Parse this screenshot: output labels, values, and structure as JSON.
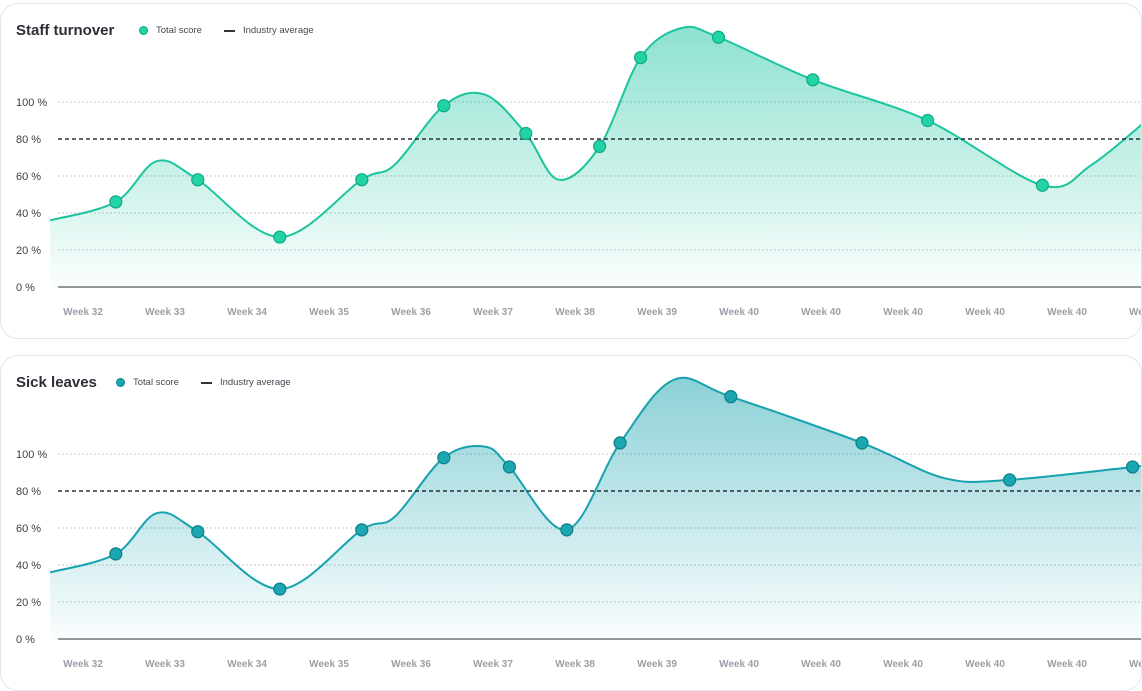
{
  "chart_data": [
    {
      "type": "area",
      "title": "Staff turnover",
      "legend": [
        "Total score",
        "Industry average"
      ],
      "color": "#1cc4a0",
      "marker_color": "#22d3a6",
      "marker_stroke": "#10a985",
      "yticks": [
        "0 %",
        "20 %",
        "40 %",
        "60 %",
        "80 %",
        "100 %"
      ],
      "ylim": [
        0,
        140
      ],
      "x_labels": [
        "Week 32",
        "Week 33",
        "Week 34",
        "Week 35",
        "Week 36",
        "Week 37",
        "Week 38",
        "Week 39",
        "Week 40",
        "Week 40",
        "Week 40",
        "Week 40",
        "Week 40",
        "Week"
      ],
      "industry_average": 80,
      "grid": true,
      "points": [
        {
          "x": -0.4,
          "y": 36,
          "marker": false
        },
        {
          "x": 0.4,
          "y": 46,
          "marker": true
        },
        {
          "x": 0.9,
          "y": 68,
          "marker": false
        },
        {
          "x": 1.4,
          "y": 58,
          "marker": true
        },
        {
          "x": 2.4,
          "y": 27,
          "marker": true
        },
        {
          "x": 3.4,
          "y": 58,
          "marker": true
        },
        {
          "x": 3.8,
          "y": 66,
          "marker": false
        },
        {
          "x": 4.4,
          "y": 98,
          "marker": true
        },
        {
          "x": 4.9,
          "y": 104,
          "marker": false
        },
        {
          "x": 5.4,
          "y": 83,
          "marker": true
        },
        {
          "x": 5.8,
          "y": 58,
          "marker": false
        },
        {
          "x": 6.3,
          "y": 76,
          "marker": true
        },
        {
          "x": 6.8,
          "y": 124,
          "marker": true
        },
        {
          "x": 7.3,
          "y": 140,
          "marker": false
        },
        {
          "x": 7.75,
          "y": 135,
          "marker": true
        },
        {
          "x": 8.9,
          "y": 112,
          "marker": true
        },
        {
          "x": 10.3,
          "y": 90,
          "marker": true
        },
        {
          "x": 11.7,
          "y": 55,
          "marker": true
        },
        {
          "x": 12.3,
          "y": 66,
          "marker": false
        },
        {
          "x": 13.1,
          "y": 95,
          "marker": false
        }
      ]
    },
    {
      "type": "area",
      "title": "Sick leaves",
      "legend": [
        "Total score",
        "Industry average"
      ],
      "color": "#16a2ae",
      "marker_color": "#1aa7b2",
      "marker_stroke": "#0d7f8a",
      "yticks": [
        "0 %",
        "20 %",
        "40 %",
        "60 %",
        "80 %",
        "100 %"
      ],
      "ylim": [
        0,
        140
      ],
      "x_labels": [
        "Week 32",
        "Week 33",
        "Week 34",
        "Week 35",
        "Week 36",
        "Week 37",
        "Week 38",
        "Week 39",
        "Week 40",
        "Week 40",
        "Week 40",
        "Week 40",
        "Week 40",
        "Week"
      ],
      "industry_average": 80,
      "grid": true,
      "points": [
        {
          "x": -0.4,
          "y": 36,
          "marker": false
        },
        {
          "x": 0.4,
          "y": 46,
          "marker": true
        },
        {
          "x": 0.9,
          "y": 68,
          "marker": false
        },
        {
          "x": 1.4,
          "y": 58,
          "marker": true
        },
        {
          "x": 2.4,
          "y": 27,
          "marker": true
        },
        {
          "x": 3.4,
          "y": 59,
          "marker": true
        },
        {
          "x": 3.8,
          "y": 66,
          "marker": false
        },
        {
          "x": 4.4,
          "y": 98,
          "marker": true
        },
        {
          "x": 4.9,
          "y": 104,
          "marker": false
        },
        {
          "x": 5.2,
          "y": 93,
          "marker": true
        },
        {
          "x": 5.9,
          "y": 59,
          "marker": true
        },
        {
          "x": 6.55,
          "y": 106,
          "marker": true
        },
        {
          "x": 7.2,
          "y": 140,
          "marker": false
        },
        {
          "x": 7.9,
          "y": 131,
          "marker": true
        },
        {
          "x": 9.5,
          "y": 106,
          "marker": true
        },
        {
          "x": 10.5,
          "y": 87,
          "marker": false
        },
        {
          "x": 11.3,
          "y": 86,
          "marker": true
        },
        {
          "x": 12.8,
          "y": 93,
          "marker": true
        },
        {
          "x": 13.1,
          "y": 95,
          "marker": false
        }
      ]
    }
  ]
}
